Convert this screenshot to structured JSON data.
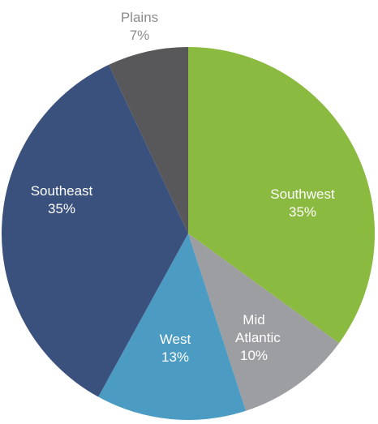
{
  "chart_data": {
    "type": "pie",
    "categories": [
      "Southwest",
      "Mid Atlantic",
      "West",
      "Southeast",
      "Plains"
    ],
    "values": [
      35,
      10,
      13,
      35,
      7
    ],
    "value_labels": [
      "35%",
      "10%",
      "13%",
      "35%",
      "7%"
    ],
    "colors": [
      "#8aba3f",
      "#9d9ea1",
      "#4b9bc3",
      "#3a517e",
      "#58585a"
    ]
  }
}
